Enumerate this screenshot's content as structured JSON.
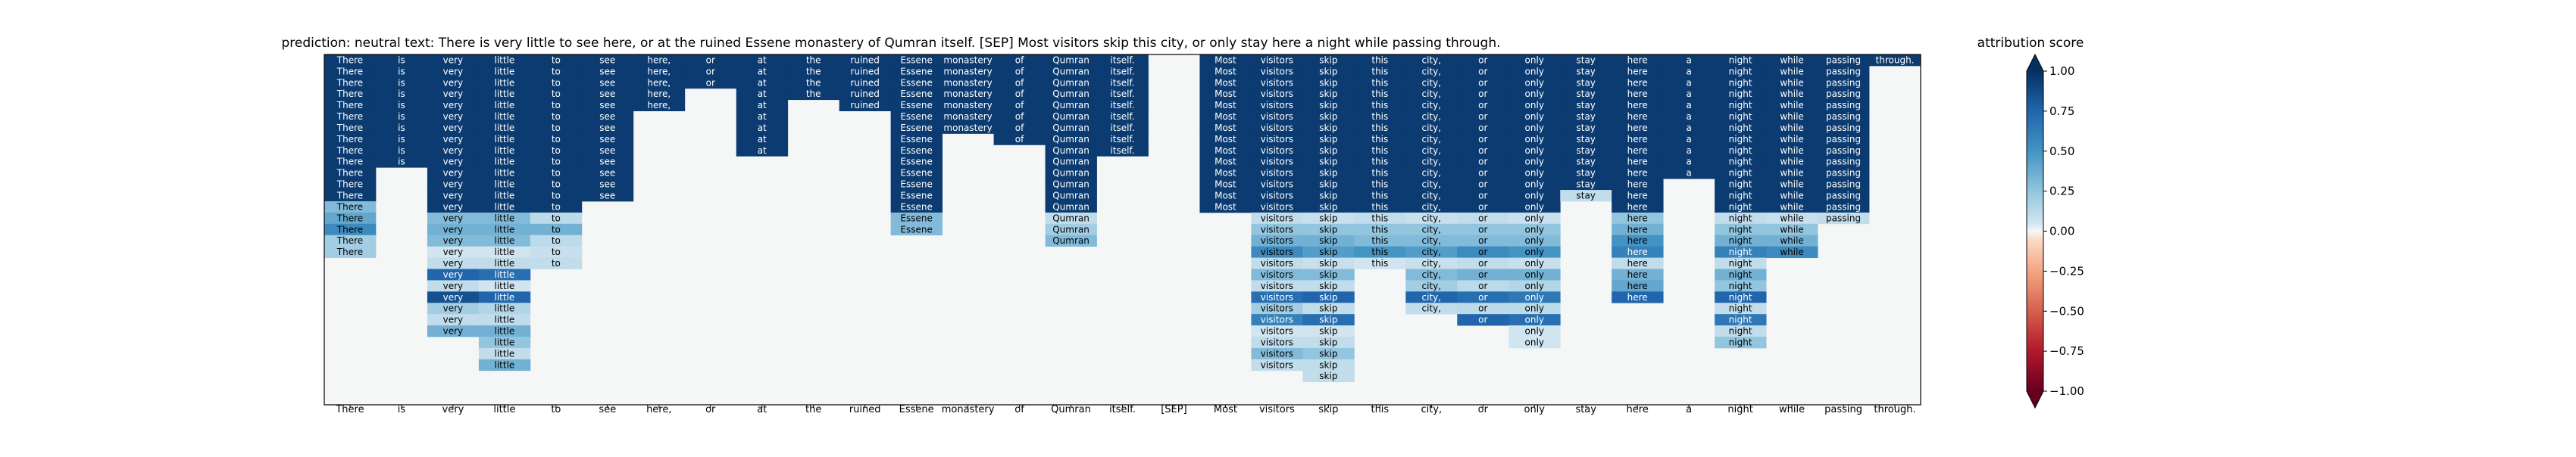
{
  "header": {
    "title": "prediction:  neutral     text:  There is very little to see here, or at the ruined Essene monastery of Qumran itself. [SEP] Most visitors skip this city, or only stay here a night while passing through.",
    "colorbar_title": "attribution score"
  },
  "chart_data": {
    "type": "heatmap",
    "colormap": "RdBu",
    "colorbar": {
      "ticks": [
        1.0,
        0.75,
        0.5,
        0.25,
        0.0,
        -0.25,
        -0.5,
        -0.75,
        -1.0
      ],
      "tick_labels": [
        "1.00",
        "0.75",
        "0.50",
        "0.25",
        "0.00",
        "−0.25",
        "−0.50",
        "−0.75",
        "−1.00"
      ],
      "range": [
        -1,
        1
      ],
      "extend": "both"
    },
    "background": "#f5f7f7",
    "tokens": [
      "There",
      "is",
      "very",
      "little",
      "to",
      "see",
      "here,",
      "or",
      "at",
      "the",
      "ruined",
      "Essene",
      "monastery",
      "of",
      "Qumran",
      "itself.",
      "[SEP]",
      "Most",
      "visitors",
      "skip",
      "this",
      "city,",
      "or",
      "only",
      "stay",
      "here",
      "a",
      "night",
      "while",
      "passing",
      "through."
    ],
    "rows": 29,
    "columns": [
      {
        "token": "There",
        "cells": [
          [
            0,
            13,
            0.95
          ],
          [
            13,
            14,
            0.3
          ],
          [
            14,
            15,
            0.4
          ],
          [
            15,
            16,
            0.55
          ],
          [
            16,
            18,
            0.2
          ]
        ]
      },
      {
        "token": "is",
        "cells": [
          [
            0,
            10,
            0.95
          ]
        ]
      },
      {
        "token": "very",
        "cells": [
          [
            0,
            14,
            0.95
          ],
          [
            14,
            15,
            0.3
          ],
          [
            15,
            16,
            0.35
          ],
          [
            16,
            17,
            0.3
          ],
          [
            17,
            18,
            0.05
          ],
          [
            18,
            19,
            0.1
          ],
          [
            19,
            20,
            0.75
          ],
          [
            20,
            21,
            0.1
          ],
          [
            21,
            22,
            0.85
          ],
          [
            22,
            23,
            0.2
          ],
          [
            23,
            24,
            0.1
          ],
          [
            24,
            25,
            0.35
          ]
        ]
      },
      {
        "token": "little",
        "cells": [
          [
            0,
            14,
            0.95
          ],
          [
            14,
            15,
            0.3
          ],
          [
            15,
            16,
            0.35
          ],
          [
            16,
            17,
            0.3
          ],
          [
            17,
            18,
            0.05
          ],
          [
            18,
            19,
            0.1
          ],
          [
            19,
            20,
            0.7
          ],
          [
            20,
            21,
            0.05
          ],
          [
            21,
            22,
            0.75
          ],
          [
            22,
            23,
            0.15
          ],
          [
            23,
            24,
            0.1
          ],
          [
            24,
            25,
            0.35
          ],
          [
            25,
            26,
            0.25
          ],
          [
            26,
            27,
            0.1
          ],
          [
            27,
            28,
            0.35
          ]
        ]
      },
      {
        "token": "to",
        "cells": [
          [
            0,
            14,
            0.95
          ],
          [
            14,
            15,
            0.12
          ],
          [
            15,
            16,
            0.35
          ],
          [
            16,
            17,
            0.12
          ],
          [
            17,
            18,
            0.08
          ],
          [
            18,
            19,
            0.1
          ]
        ]
      },
      {
        "token": "see",
        "cells": [
          [
            0,
            13,
            0.95
          ]
        ]
      },
      {
        "token": "here,",
        "cells": [
          [
            0,
            5,
            0.95
          ]
        ]
      },
      {
        "token": "or",
        "cells": [
          [
            0,
            3,
            0.95
          ]
        ]
      },
      {
        "token": "at",
        "cells": [
          [
            0,
            9,
            0.95
          ]
        ]
      },
      {
        "token": "the",
        "cells": [
          [
            0,
            4,
            0.95
          ]
        ]
      },
      {
        "token": "ruined",
        "cells": [
          [
            0,
            5,
            0.95
          ]
        ]
      },
      {
        "token": "Essene",
        "cells": [
          [
            0,
            14,
            0.95
          ],
          [
            14,
            16,
            0.3
          ]
        ]
      },
      {
        "token": "monastery",
        "cells": [
          [
            0,
            7,
            0.95
          ]
        ]
      },
      {
        "token": "of",
        "cells": [
          [
            0,
            8,
            0.95
          ]
        ]
      },
      {
        "token": "Qumran",
        "cells": [
          [
            0,
            14,
            0.95
          ],
          [
            14,
            15,
            0.1
          ],
          [
            15,
            16,
            0.2
          ],
          [
            16,
            17,
            0.3
          ]
        ]
      },
      {
        "token": "itself.",
        "cells": [
          [
            0,
            9,
            0.95
          ]
        ]
      },
      {
        "token": "[SEP]",
        "cells": []
      },
      {
        "token": "Most",
        "cells": [
          [
            0,
            14,
            0.95
          ]
        ]
      },
      {
        "token": "visitors",
        "cells": [
          [
            0,
            14,
            0.95
          ],
          [
            14,
            15,
            0.1
          ],
          [
            15,
            16,
            0.25
          ],
          [
            16,
            17,
            0.35
          ],
          [
            17,
            18,
            0.55
          ],
          [
            18,
            19,
            0.1
          ],
          [
            19,
            20,
            0.3
          ],
          [
            20,
            21,
            0.1
          ],
          [
            21,
            22,
            0.7
          ],
          [
            22,
            23,
            0.2
          ],
          [
            23,
            24,
            0.6
          ],
          [
            24,
            25,
            0.05
          ],
          [
            25,
            26,
            0.1
          ],
          [
            26,
            27,
            0.3
          ],
          [
            27,
            28,
            0.1
          ]
        ]
      },
      {
        "token": "skip",
        "cells": [
          [
            0,
            14,
            0.95
          ],
          [
            14,
            15,
            0.08
          ],
          [
            15,
            16,
            0.25
          ],
          [
            16,
            17,
            0.35
          ],
          [
            17,
            18,
            0.45
          ],
          [
            18,
            19,
            0.08
          ],
          [
            19,
            20,
            0.3
          ],
          [
            20,
            21,
            0.1
          ],
          [
            21,
            22,
            0.75
          ],
          [
            22,
            23,
            0.1
          ],
          [
            23,
            24,
            0.7
          ],
          [
            24,
            25,
            0.05
          ],
          [
            25,
            26,
            0.1
          ],
          [
            26,
            27,
            0.25
          ],
          [
            27,
            28,
            0.1
          ],
          [
            28,
            29,
            0.1
          ]
        ]
      },
      {
        "token": "this",
        "cells": [
          [
            0,
            14,
            0.95
          ],
          [
            14,
            15,
            0.1
          ],
          [
            15,
            16,
            0.25
          ],
          [
            16,
            17,
            0.3
          ],
          [
            17,
            18,
            0.5
          ],
          [
            18,
            19,
            0.05
          ]
        ]
      },
      {
        "token": "city,",
        "cells": [
          [
            0,
            14,
            0.95
          ],
          [
            14,
            15,
            0.08
          ],
          [
            15,
            16,
            0.25
          ],
          [
            16,
            17,
            0.3
          ],
          [
            17,
            18,
            0.45
          ],
          [
            18,
            19,
            0.08
          ],
          [
            19,
            20,
            0.3
          ],
          [
            20,
            21,
            0.2
          ],
          [
            21,
            22,
            0.75
          ],
          [
            22,
            23,
            0.1
          ]
        ]
      },
      {
        "token": "or",
        "cells": [
          [
            0,
            14,
            0.95
          ],
          [
            14,
            15,
            0.1
          ],
          [
            15,
            16,
            0.25
          ],
          [
            16,
            17,
            0.3
          ],
          [
            17,
            18,
            0.55
          ],
          [
            18,
            19,
            0.1
          ],
          [
            19,
            20,
            0.35
          ],
          [
            20,
            21,
            0.12
          ],
          [
            21,
            22,
            0.7
          ],
          [
            22,
            23,
            0.12
          ],
          [
            23,
            24,
            0.75
          ]
        ]
      },
      {
        "token": "only",
        "cells": [
          [
            0,
            14,
            0.95
          ],
          [
            14,
            15,
            0.08
          ],
          [
            15,
            16,
            0.25
          ],
          [
            16,
            17,
            0.3
          ],
          [
            17,
            18,
            0.5
          ],
          [
            18,
            19,
            0.08
          ],
          [
            19,
            20,
            0.35
          ],
          [
            20,
            21,
            0.15
          ],
          [
            21,
            22,
            0.65
          ],
          [
            22,
            23,
            0.12
          ],
          [
            23,
            24,
            0.7
          ],
          [
            24,
            25,
            0.05
          ],
          [
            25,
            26,
            0.05
          ]
        ]
      },
      {
        "token": "stay",
        "cells": [
          [
            0,
            12,
            0.95
          ],
          [
            12,
            13,
            0.1
          ]
        ]
      },
      {
        "token": "here",
        "cells": [
          [
            0,
            14,
            0.95
          ],
          [
            14,
            15,
            0.25
          ],
          [
            15,
            16,
            0.35
          ],
          [
            16,
            17,
            0.5
          ],
          [
            17,
            18,
            0.6
          ],
          [
            18,
            19,
            0.1
          ],
          [
            19,
            20,
            0.35
          ],
          [
            20,
            21,
            0.4
          ],
          [
            21,
            22,
            0.75
          ]
        ]
      },
      {
        "token": "a",
        "cells": [
          [
            0,
            11,
            0.95
          ]
        ]
      },
      {
        "token": "night",
        "cells": [
          [
            0,
            14,
            0.95
          ],
          [
            14,
            15,
            0.1
          ],
          [
            15,
            16,
            0.25
          ],
          [
            16,
            17,
            0.35
          ],
          [
            17,
            18,
            0.6
          ],
          [
            18,
            19,
            0.1
          ],
          [
            19,
            20,
            0.35
          ],
          [
            20,
            21,
            0.25
          ],
          [
            21,
            22,
            0.75
          ],
          [
            22,
            23,
            0.1
          ],
          [
            23,
            24,
            0.65
          ],
          [
            24,
            25,
            0.1
          ],
          [
            25,
            26,
            0.25
          ]
        ]
      },
      {
        "token": "while",
        "cells": [
          [
            0,
            14,
            0.95
          ],
          [
            14,
            15,
            0.08
          ],
          [
            15,
            16,
            0.25
          ],
          [
            16,
            17,
            0.35
          ],
          [
            17,
            18,
            0.55
          ]
        ]
      },
      {
        "token": "passing",
        "cells": [
          [
            0,
            14,
            0.95
          ],
          [
            14,
            15,
            0.1
          ]
        ]
      },
      {
        "token": "through.",
        "cells": [
          [
            0,
            1,
            0.95
          ]
        ]
      }
    ]
  }
}
